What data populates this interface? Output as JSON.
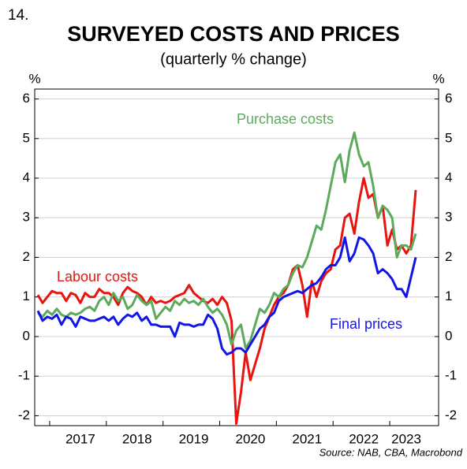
{
  "chart_data": {
    "type": "line",
    "number": "14.",
    "title": "SURVEYED COSTS AND PRICES",
    "subtitle": "(quarterly % change)",
    "y_label": "%",
    "y2_label": "%",
    "source": "Source: NAB, CBA, Macrobond",
    "categories": [
      null,
      null,
      null,
      null,
      null,
      null,
      null,
      null,
      null,
      "2017",
      null,
      null,
      null,
      null,
      null,
      null,
      null,
      null,
      null,
      null,
      null,
      "2018",
      null,
      null,
      null,
      null,
      null,
      null,
      null,
      null,
      null,
      null,
      null,
      "2019",
      null,
      null,
      null,
      null,
      null,
      null,
      null,
      null,
      null,
      null,
      null,
      "2020",
      null,
      null,
      null,
      null,
      null,
      null,
      null,
      null,
      null,
      null,
      null,
      "2021",
      null,
      null,
      null,
      null,
      null,
      null,
      null,
      null,
      null,
      null,
      null,
      "2022",
      null,
      null,
      null,
      null,
      null,
      null,
      null,
      null,
      "2023",
      null,
      null
    ],
    "series": [
      {
        "name": "Labour costs",
        "color": "#e8140f",
        "values": [
          1.05,
          0.85,
          1.0,
          1.15,
          1.1,
          1.1,
          0.9,
          1.1,
          1.05,
          0.85,
          1.1,
          1.0,
          1.0,
          1.2,
          1.1,
          1.1,
          1.0,
          0.8,
          1.1,
          1.25,
          1.15,
          1.1,
          1.0,
          0.8,
          1.0,
          0.85,
          0.9,
          0.85,
          0.9,
          1.0,
          1.05,
          1.1,
          1.3,
          1.1,
          1.0,
          0.9,
          0.85,
          0.95,
          0.8,
          1.0,
          0.85,
          0.4,
          -2.2,
          -1.4,
          -0.4,
          -1.1,
          -0.7,
          -0.3,
          0.2,
          0.5,
          0.8,
          1.0,
          1.1,
          1.3,
          1.7,
          1.8,
          1.3,
          0.5,
          1.4,
          1.0,
          1.4,
          1.6,
          1.7,
          2.2,
          2.3,
          3.0,
          3.1,
          2.6,
          3.4,
          4.0,
          3.5,
          3.6,
          3.0,
          3.3,
          2.3,
          2.7,
          2.2,
          2.3,
          2.1,
          2.3,
          3.7
        ]
      },
      {
        "name": "Purchase costs",
        "color": "#5cab5c",
        "values": [
          0.6,
          0.5,
          0.65,
          0.55,
          0.7,
          0.55,
          0.5,
          0.6,
          0.55,
          0.6,
          0.7,
          0.75,
          0.65,
          0.9,
          1.0,
          0.8,
          1.1,
          0.9,
          1.0,
          0.7,
          0.8,
          1.05,
          0.9,
          0.8,
          0.9,
          0.45,
          0.6,
          0.75,
          0.65,
          0.9,
          0.8,
          0.95,
          0.85,
          0.9,
          0.8,
          0.95,
          0.75,
          0.6,
          0.7,
          0.55,
          0.3,
          -0.2,
          0.15,
          0.3,
          -0.3,
          -0.1,
          0.3,
          0.7,
          0.6,
          0.8,
          1.1,
          1.0,
          1.2,
          1.3,
          1.6,
          1.8,
          1.75,
          2.0,
          2.4,
          2.8,
          2.7,
          3.2,
          3.8,
          4.4,
          4.6,
          3.9,
          4.7,
          5.15,
          4.6,
          4.3,
          4.4,
          3.8,
          3.0,
          3.3,
          3.2,
          3.0,
          2.0,
          2.3,
          2.3,
          2.2,
          2.6
        ]
      },
      {
        "name": "Final prices",
        "color": "#1414e6",
        "values": [
          0.65,
          0.4,
          0.5,
          0.45,
          0.55,
          0.3,
          0.5,
          0.45,
          0.25,
          0.5,
          0.45,
          0.4,
          0.4,
          0.45,
          0.5,
          0.4,
          0.5,
          0.3,
          0.45,
          0.55,
          0.5,
          0.6,
          0.4,
          0.5,
          0.3,
          0.3,
          0.25,
          0.25,
          0.25,
          0.0,
          0.35,
          0.3,
          0.3,
          0.25,
          0.3,
          0.3,
          0.55,
          0.45,
          0.2,
          -0.3,
          -0.45,
          -0.4,
          -0.3,
          -0.3,
          -0.4,
          -0.2,
          0.0,
          0.2,
          0.3,
          0.5,
          0.6,
          0.9,
          1.0,
          1.05,
          1.1,
          1.15,
          1.1,
          1.2,
          1.3,
          1.35,
          1.5,
          1.7,
          1.8,
          1.8,
          2.0,
          2.5,
          1.9,
          2.1,
          2.5,
          2.45,
          2.3,
          2.1,
          1.6,
          1.7,
          1.6,
          1.45,
          1.2,
          1.2,
          1.0,
          1.5,
          2.0
        ]
      }
    ],
    "ylim": [
      -2.25,
      6.25
    ],
    "yticks": [
      -2,
      -1,
      0,
      1,
      2,
      3,
      4,
      5,
      6
    ],
    "y2lim": [
      -2.25,
      6.25
    ],
    "y2ticks": [
      -2,
      -1,
      0,
      1,
      2,
      3,
      4,
      5,
      6
    ],
    "grid": true
  }
}
